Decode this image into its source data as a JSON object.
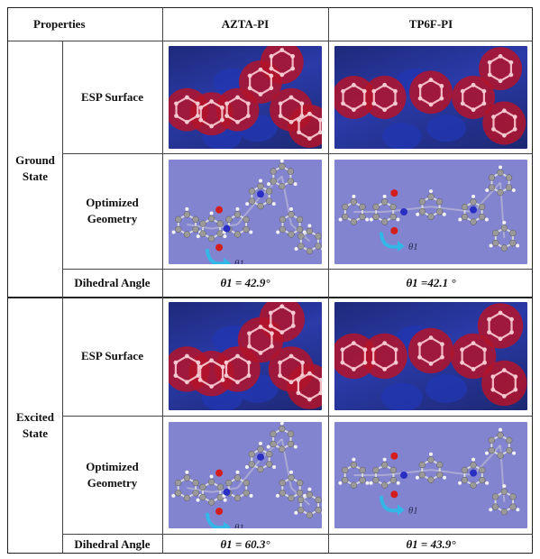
{
  "header": {
    "properties": "Properties",
    "col1": "AZTA-PI",
    "col2": "TP6F-PI"
  },
  "ground": {
    "state_label_line1": "Ground",
    "state_label_line2": "State",
    "esp_label": "ESP Surface",
    "geom_label_line1": "Optimized",
    "geom_label_line2": "Geometry",
    "dihedral_label": "Dihedral Angle",
    "azta_dihedral": "θ1 = 42.9°",
    "tp6f_dihedral": "θ1 =42.1 °"
  },
  "excited": {
    "state_label_line1": "Excited",
    "state_label_line2": "State",
    "esp_label": "ESP Surface",
    "geom_label_line1": "Optimized",
    "geom_label_line2": "Geometry",
    "dihedral_label": "Dihedral Angle",
    "azta_dihedral": "θ1 = 60.3°",
    "tp6f_dihedral": "θ1 = 43.9°"
  },
  "figure_labels": {
    "theta_symbol": "θ1"
  },
  "colors": {
    "esp_red": "#b3142a",
    "esp_blue": "#2236b0",
    "geometry_bg": "#8384cf",
    "carbon": "#9a9a9a",
    "oxygen": "#d41d1d",
    "nitrogen": "#2a2fc4",
    "hydrogen": "#f2f2f2",
    "arrow": "#34b6e6"
  }
}
